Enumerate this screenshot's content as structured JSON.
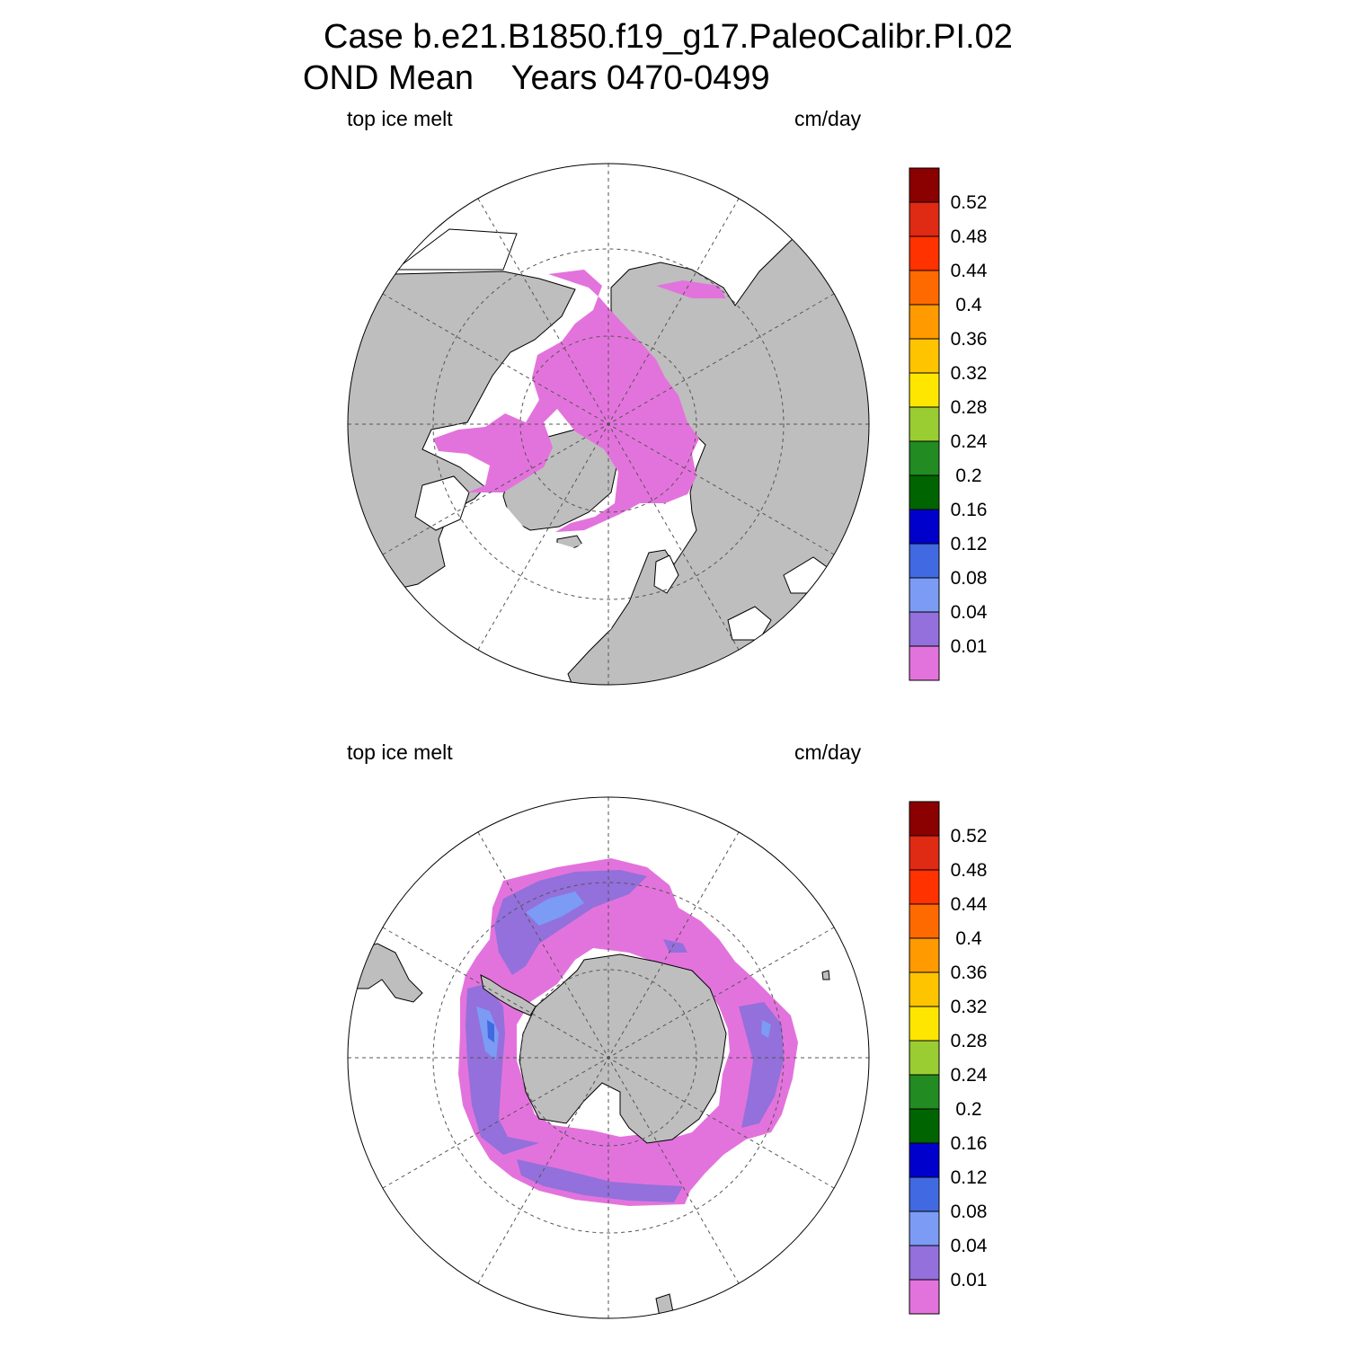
{
  "title_line1": "Case b.e21.B1850.f19_g17.PaleoCalibr.PI.02",
  "title_line2": "OND Mean    Years 0470-0499",
  "panels": [
    {
      "name": "north",
      "left_label": "top ice melt",
      "right_label": "cm/day"
    },
    {
      "name": "south",
      "left_label": "top ice melt",
      "right_label": "cm/day"
    }
  ],
  "colorbar": {
    "labels": [
      "0.01",
      "0.04",
      "0.08",
      "0.12",
      "0.16",
      "0.2",
      "0.24",
      "0.28",
      "0.32",
      "0.36",
      "0.4",
      "0.44",
      "0.48",
      "0.52"
    ],
    "colors": [
      "#e373dc",
      "#9370db",
      "#7b9bf5",
      "#4169e1",
      "#0000cd",
      "#006400",
      "#228b22",
      "#9acd32",
      "#ffe600",
      "#ffc400",
      "#ff9a00",
      "#ff6a00",
      "#ff3200",
      "#df2a14",
      "#8b0000"
    ]
  },
  "map_colors": {
    "land": "#bebebe",
    "ocean": "#ffffff",
    "ice_low": "#e373dc",
    "ice_mid": "#9370db",
    "ice_high": "#7b9bf5",
    "ice_max": "#4169e1"
  }
}
